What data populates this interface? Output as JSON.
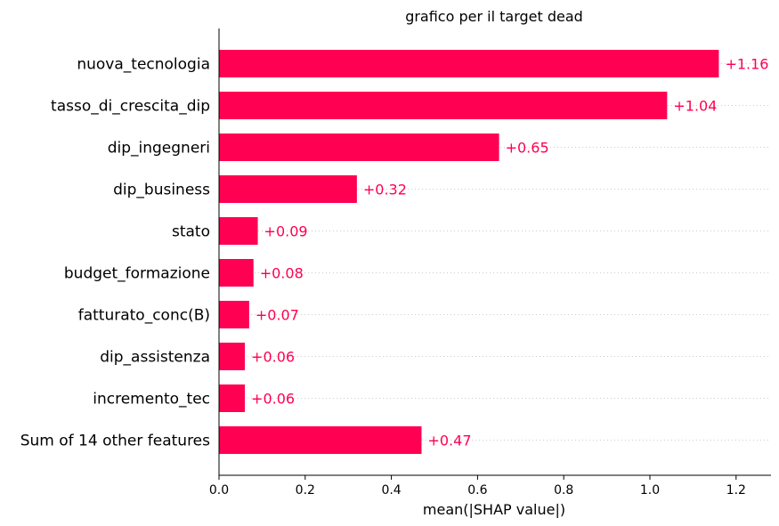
{
  "chart_data": {
    "type": "bar",
    "orientation": "horizontal",
    "title": "grafico per il target dead",
    "xlabel": "mean(|SHAP value|)",
    "ylabel": "",
    "categories": [
      "nuova_tecnologia",
      "tasso_di_crescita_dip",
      "dip_ingegneri",
      "dip_business",
      "stato",
      "budget_formazione",
      "fatturato_conc(B)",
      "dip_assistenza",
      "incremento_tec",
      "Sum of 14 other features"
    ],
    "values": [
      1.16,
      1.04,
      0.65,
      0.32,
      0.09,
      0.08,
      0.07,
      0.06,
      0.06,
      0.47
    ],
    "value_labels": [
      "+1.16",
      "+1.04",
      "+0.65",
      "+0.32",
      "+0.09",
      "+0.08",
      "+0.07",
      "+0.06",
      "+0.06",
      "+0.47"
    ],
    "xlim": [
      0,
      1.28
    ],
    "xticks": [
      0.0,
      0.2,
      0.4,
      0.6,
      0.8,
      1.0,
      1.2
    ],
    "xtick_labels": [
      "0.0",
      "0.2",
      "0.4",
      "0.6",
      "0.8",
      "1.0",
      "1.2"
    ],
    "grid": "horizontal dotted",
    "legend": "none",
    "colors": {
      "bar": "#ff0052",
      "label": "#ff0052",
      "grid": "#cccccc",
      "axis": "#000000"
    }
  }
}
